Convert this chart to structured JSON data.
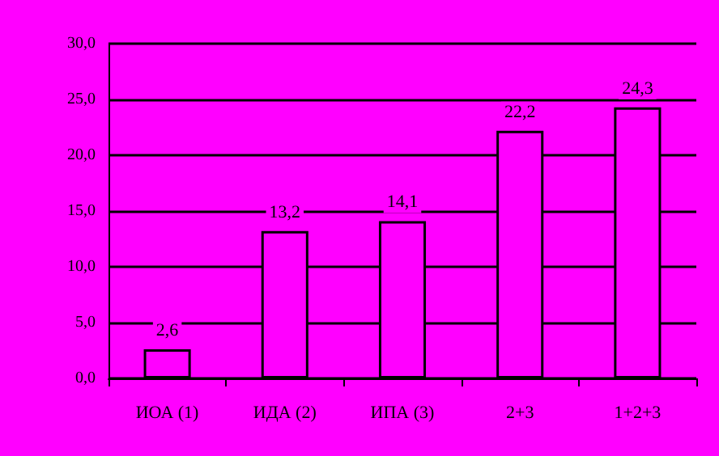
{
  "chart_data": {
    "type": "bar",
    "categories": [
      "ИОА (1)",
      "ИДА (2)",
      "ИПА (3)",
      "2+3",
      "1+2+3"
    ],
    "values": [
      2.6,
      13.2,
      14.1,
      22.2,
      24.3
    ],
    "value_labels": [
      "2,6",
      "13,2",
      "14,1",
      "22,2",
      "24,3"
    ],
    "color": "#ff00ff",
    "ylim": [
      0,
      30
    ],
    "yticks": [
      {
        "value": 0,
        "label": "0,0"
      },
      {
        "value": 5,
        "label": "5,0"
      },
      {
        "value": 10,
        "label": "10,0"
      },
      {
        "value": 15,
        "label": "15,0"
      },
      {
        "value": 20,
        "label": "20,0"
      },
      {
        "value": 25,
        "label": "25,0"
      },
      {
        "value": 30,
        "label": "30,0"
      }
    ],
    "grid": "y"
  }
}
